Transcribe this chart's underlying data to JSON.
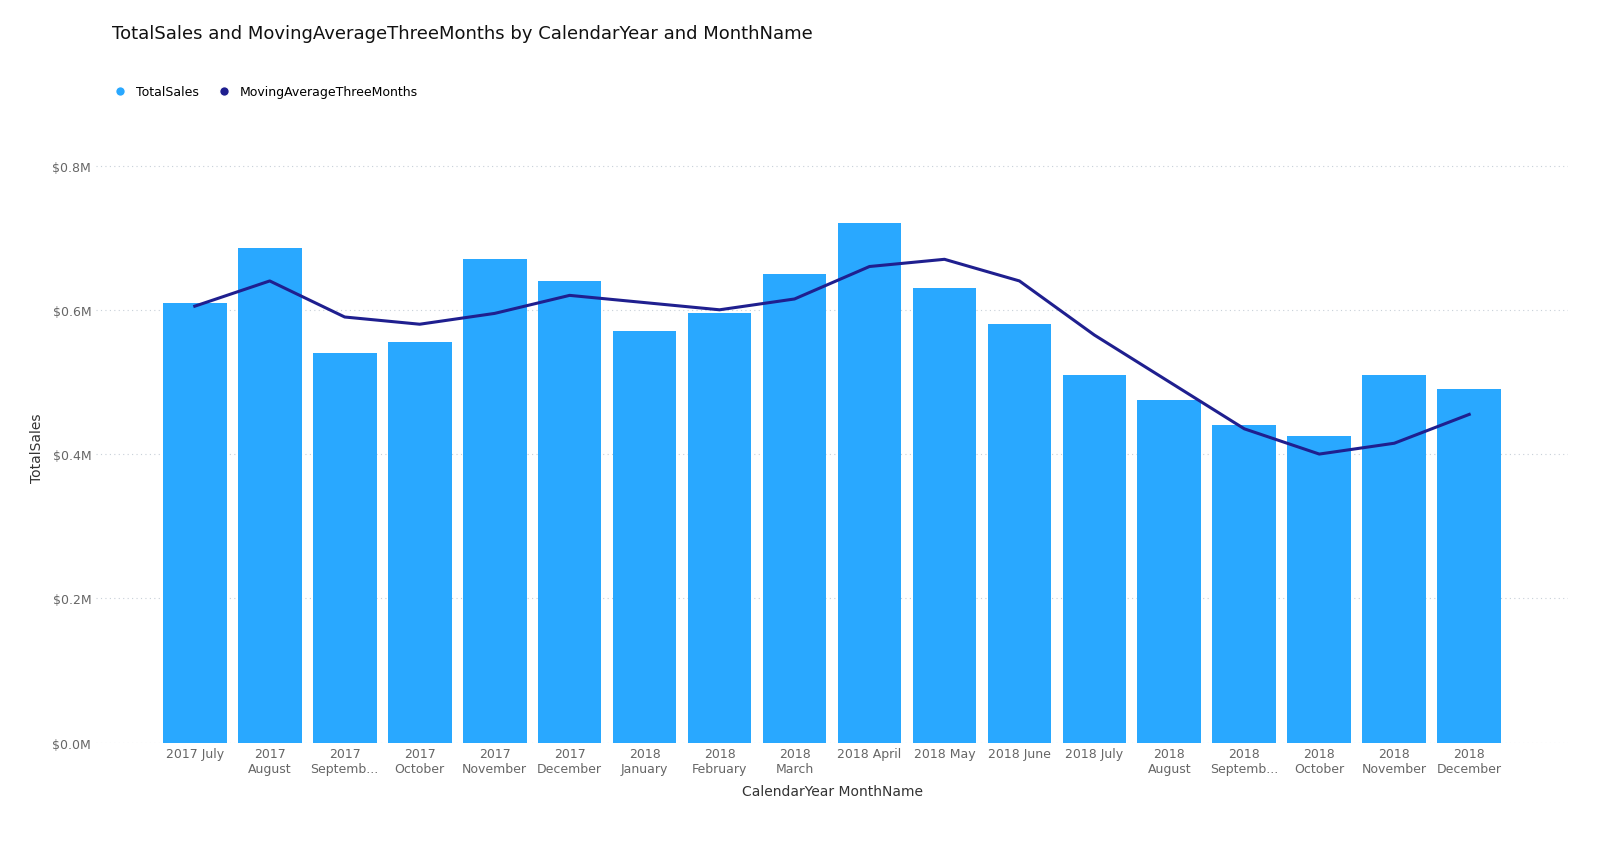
{
  "title": "TotalSales and MovingAverageThreeMonths by CalendarYear and MonthName",
  "xlabel": "CalendarYear MonthName",
  "ylabel": "TotalSales",
  "background_color": "#ffffff",
  "bar_color": "#29A8FF",
  "line_color": "#1F1F8F",
  "bar_values": [
    0.61,
    0.685,
    0.54,
    0.555,
    0.67,
    0.64,
    0.57,
    0.595,
    0.65,
    0.72,
    0.63,
    0.58,
    0.51,
    0.475,
    0.44,
    0.425,
    0.51,
    0.49
  ],
  "line_values": [
    0.605,
    0.64,
    0.59,
    0.58,
    0.595,
    0.62,
    0.61,
    0.6,
    0.615,
    0.66,
    0.67,
    0.64,
    0.565,
    0.5,
    0.435,
    0.4,
    0.415,
    0.455
  ],
  "x_labels": [
    "2017 July",
    "2017\nAugust",
    "2017\nSeptemb...",
    "2017\nOctober",
    "2017\nNovember",
    "2017\nDecember",
    "2018\nJanuary",
    "2018\nFebruary",
    "2018\nMarch",
    "2018 April",
    "2018 May",
    "2018 June",
    "2018 July",
    "2018\nAugust",
    "2018\nSeptemb...",
    "2018\nOctober",
    "2018\nNovember",
    "2018\nDecember"
  ],
  "ylim": [
    0,
    0.82
  ],
  "yticks": [
    0.0,
    0.2,
    0.4,
    0.6,
    0.8
  ],
  "ytick_labels": [
    "$0.0M",
    "$0.2M",
    "$0.4M",
    "$0.6M",
    "$0.8M"
  ],
  "legend_labels": [
    "TotalSales",
    "MovingAverageThreeMonths"
  ],
  "title_fontsize": 13,
  "axis_label_fontsize": 10,
  "tick_fontsize": 9,
  "legend_fontsize": 9,
  "grid_color": "#C8D0D8"
}
